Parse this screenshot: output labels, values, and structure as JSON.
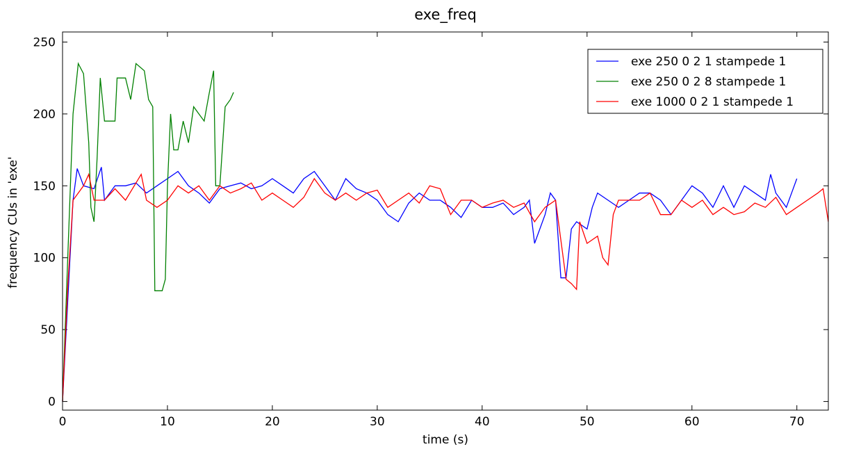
{
  "chart_data": {
    "type": "line",
    "title": "exe_freq",
    "xlabel": "time (s)",
    "ylabel": "frequency CUs in 'exe'",
    "xlim": [
      0,
      73
    ],
    "ylim": [
      -6,
      257
    ],
    "xticks": [
      0,
      10,
      20,
      30,
      40,
      50,
      60,
      70
    ],
    "yticks": [
      0,
      50,
      100,
      150,
      200,
      250
    ],
    "legend": "upper right",
    "series": [
      {
        "name": "exe 250 0 2 1 stampede 1",
        "color": "#0000ff",
        "x": [
          0,
          0.5,
          1,
          1.4,
          2,
          3,
          3.7,
          4,
          5,
          6,
          7,
          8,
          9,
          10,
          11,
          12,
          13,
          14,
          15,
          16,
          17,
          18,
          19,
          20,
          21,
          22,
          23,
          24,
          25,
          26,
          27,
          28,
          29,
          30,
          31,
          32,
          33,
          34,
          35,
          36,
          37,
          38,
          39,
          40,
          41,
          42,
          43,
          44,
          44.5,
          45,
          46,
          46.5,
          47,
          47.5,
          48,
          48.5,
          49,
          50,
          50.5,
          51,
          52,
          53,
          54,
          55,
          56,
          57,
          58,
          59,
          60,
          61,
          62,
          63,
          64,
          65,
          66,
          67,
          67.5,
          68,
          69,
          70
        ],
        "values": [
          0,
          70,
          140,
          162,
          150,
          148,
          163,
          140,
          150,
          150,
          152,
          145,
          150,
          155,
          160,
          150,
          145,
          138,
          148,
          150,
          152,
          148,
          150,
          155,
          150,
          145,
          155,
          160,
          150,
          140,
          155,
          148,
          145,
          140,
          130,
          125,
          138,
          145,
          140,
          140,
          135,
          128,
          140,
          135,
          135,
          138,
          130,
          135,
          140,
          110,
          130,
          145,
          140,
          86,
          86,
          120,
          125,
          120,
          135,
          145,
          140,
          135,
          140,
          145,
          145,
          140,
          130,
          140,
          150,
          145,
          135,
          150,
          135,
          150,
          145,
          140,
          158,
          145,
          135,
          155
        ]
      },
      {
        "name": "exe 250 0 2 8 stampede 1",
        "color": "#008000",
        "x": [
          0,
          0.5,
          1,
          1.5,
          2,
          2.5,
          2.7,
          3,
          3.3,
          3.6,
          4,
          5,
          5.2,
          6,
          6.5,
          7,
          7.8,
          8.2,
          8.6,
          8.8,
          9.5,
          9.8,
          10,
          10.3,
          10.6,
          11,
          11.5,
          12,
          12.5,
          13,
          13.5,
          14,
          14.4,
          14.6,
          15,
          15.5,
          16,
          16.3
        ],
        "values": [
          0,
          100,
          200,
          235,
          228,
          180,
          135,
          125,
          170,
          225,
          195,
          195,
          225,
          225,
          210,
          235,
          230,
          210,
          205,
          77,
          77,
          85,
          150,
          200,
          175,
          175,
          195,
          180,
          205,
          200,
          195,
          215,
          230,
          150,
          150,
          205,
          210,
          215
        ]
      },
      {
        "name": "exe 1000 0 2 1 stampede 1",
        "color": "#ff0000",
        "x": [
          0,
          0.5,
          1,
          2,
          2.5,
          3,
          4,
          5,
          6,
          7,
          7.5,
          8,
          9,
          10,
          11,
          12,
          13,
          14,
          15,
          16,
          17,
          18,
          19,
          20,
          21,
          22,
          23,
          24,
          25,
          26,
          27,
          28,
          29,
          30,
          31,
          32,
          33,
          34,
          35,
          36,
          37,
          38,
          39,
          40,
          41,
          42,
          43,
          44,
          45,
          46,
          47,
          48,
          48.5,
          49,
          49.3,
          50,
          51,
          51.5,
          52,
          52.5,
          53,
          54,
          55,
          56,
          57,
          58,
          59,
          60,
          61,
          62,
          63,
          64,
          65,
          66,
          67,
          68,
          69,
          70,
          71,
          72,
          72.5,
          73
        ],
        "values": [
          0,
          80,
          140,
          150,
          158,
          140,
          140,
          148,
          140,
          152,
          158,
          140,
          135,
          140,
          150,
          145,
          150,
          140,
          150,
          145,
          148,
          152,
          140,
          145,
          140,
          135,
          142,
          155,
          145,
          140,
          145,
          140,
          145,
          147,
          135,
          140,
          145,
          138,
          150,
          148,
          130,
          140,
          140,
          135,
          138,
          140,
          135,
          138,
          125,
          135,
          140,
          85,
          82,
          78,
          125,
          110,
          115,
          100,
          95,
          130,
          140,
          140,
          140,
          145,
          130,
          130,
          140,
          135,
          140,
          130,
          135,
          130,
          132,
          138,
          135,
          142,
          130,
          135,
          140,
          145,
          148,
          125
        ]
      }
    ]
  }
}
